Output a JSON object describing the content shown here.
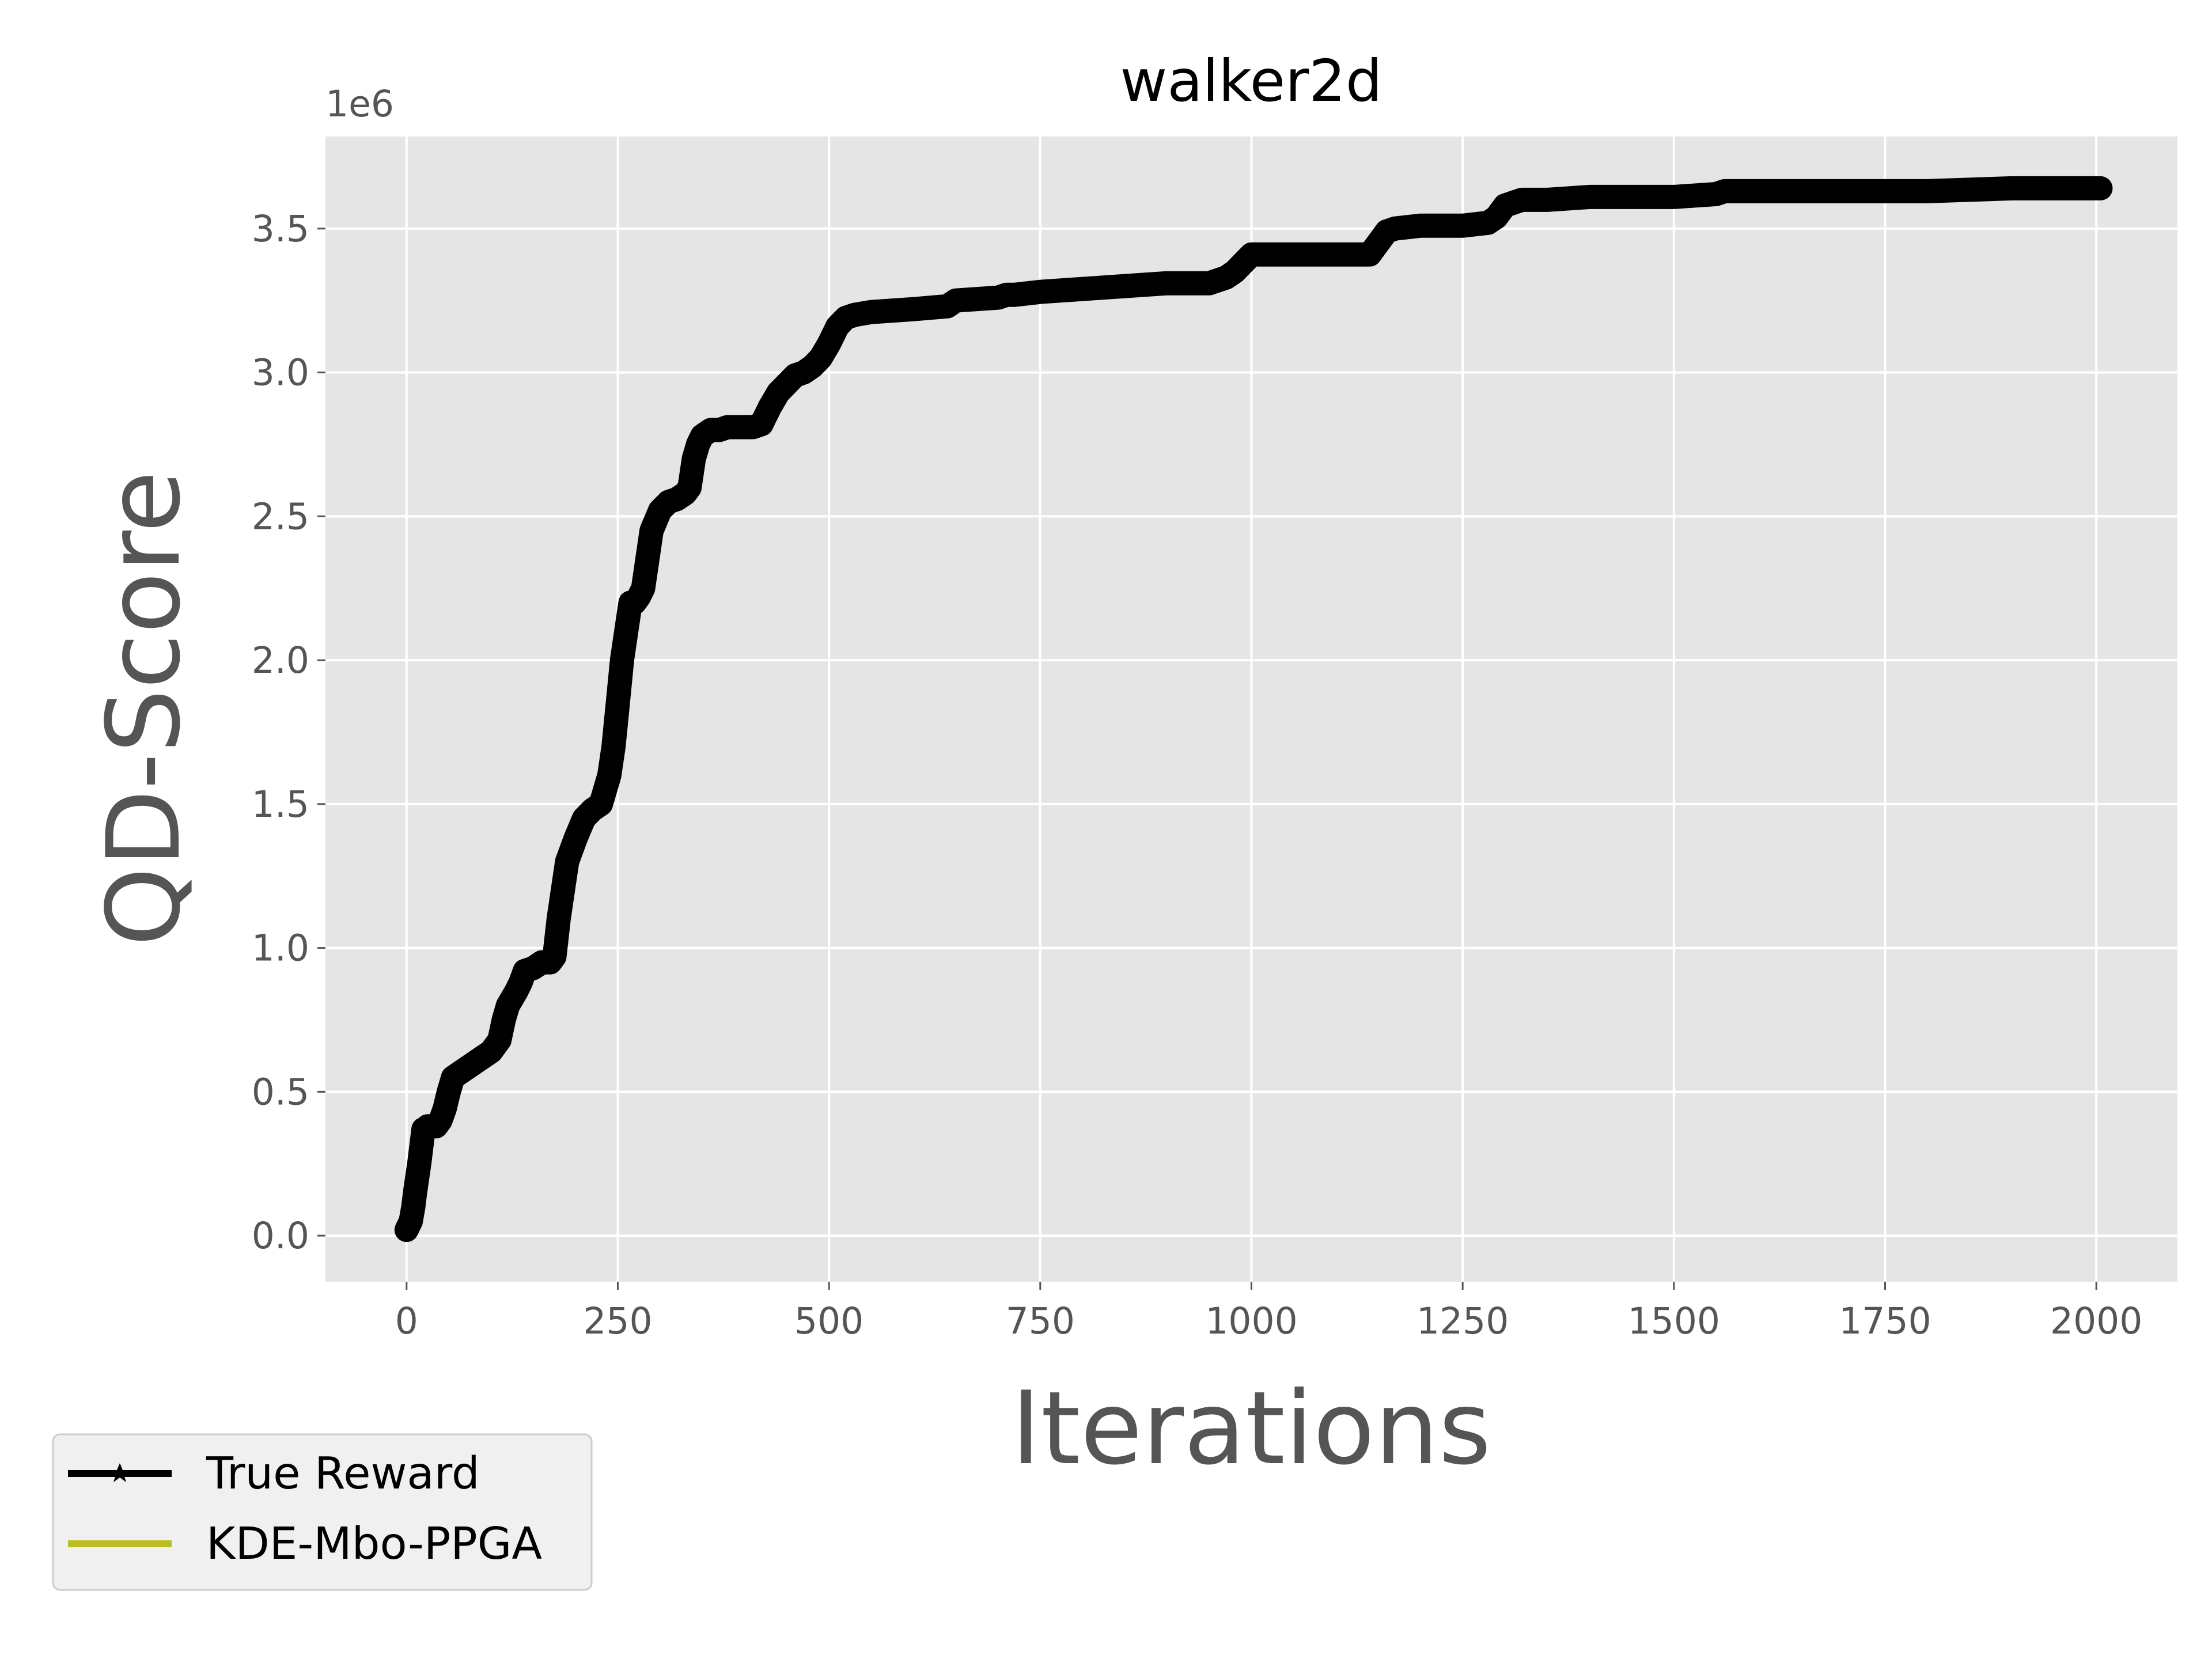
{
  "chart_data": {
    "type": "line",
    "title": "walker2d",
    "xlabel": "Iterations",
    "ylabel": "QD-Score",
    "y_offset_label": "1e6",
    "xlim": [
      -96,
      2096
    ],
    "ylim": [
      -0.16,
      3.82
    ],
    "x_ticks": [
      0,
      250,
      500,
      750,
      1000,
      1250,
      1500,
      1750,
      2000
    ],
    "x_tick_labels": [
      "0",
      "250",
      "500",
      "750",
      "1000",
      "1250",
      "1500",
      "1750",
      "2000"
    ],
    "y_ticks": [
      0.0,
      0.5,
      1.0,
      1.5,
      2.0,
      2.5,
      3.0,
      3.5
    ],
    "y_tick_labels": [
      "0.0",
      "0.5",
      "1.0",
      "1.5",
      "2.0",
      "2.5",
      "3.0",
      "3.5"
    ],
    "grid": true,
    "legend_position": "bottom-left outside",
    "series": [
      {
        "name": "True Reward",
        "color": "#000000",
        "marker": "star",
        "x": [
          0,
          5,
          8,
          10,
          15,
          20,
          22,
          25,
          35,
          40,
          45,
          50,
          55,
          60,
          70,
          80,
          90,
          95,
          100,
          110,
          115,
          120,
          130,
          135,
          140,
          150,
          155,
          160,
          170,
          175,
          180,
          185,
          190,
          200,
          210,
          220,
          230,
          240,
          245,
          250,
          255,
          260,
          265,
          270,
          275,
          280,
          285,
          290,
          300,
          310,
          320,
          330,
          335,
          340,
          345,
          350,
          360,
          370,
          380,
          390,
          400,
          410,
          420,
          430,
          440,
          450,
          460,
          470,
          480,
          490,
          500,
          505,
          510,
          520,
          530,
          550,
          600,
          640,
          650,
          700,
          710,
          720,
          750,
          800,
          850,
          900,
          950,
          970,
          980,
          990,
          1000,
          1050,
          1100,
          1140,
          1150,
          1160,
          1170,
          1200,
          1250,
          1280,
          1290,
          1300,
          1320,
          1350,
          1400,
          1500,
          1550,
          1560,
          1600,
          1700,
          1800,
          1900,
          2000,
          2005
        ],
        "y": [
          0.02,
          0.05,
          0.1,
          0.15,
          0.25,
          0.37,
          0.37,
          0.38,
          0.38,
          0.4,
          0.44,
          0.5,
          0.55,
          0.56,
          0.58,
          0.6,
          0.62,
          0.63,
          0.64,
          0.68,
          0.75,
          0.8,
          0.85,
          0.88,
          0.92,
          0.93,
          0.94,
          0.95,
          0.95,
          0.97,
          1.1,
          1.2,
          1.3,
          1.38,
          1.45,
          1.48,
          1.5,
          1.6,
          1.7,
          1.85,
          2.0,
          2.1,
          2.2,
          2.2,
          2.22,
          2.25,
          2.35,
          2.45,
          2.52,
          2.55,
          2.56,
          2.58,
          2.6,
          2.7,
          2.75,
          2.78,
          2.8,
          2.8,
          2.81,
          2.81,
          2.81,
          2.81,
          2.82,
          2.88,
          2.93,
          2.96,
          2.99,
          3.0,
          3.02,
          3.05,
          3.1,
          3.13,
          3.16,
          3.19,
          3.2,
          3.21,
          3.22,
          3.23,
          3.25,
          3.26,
          3.27,
          3.27,
          3.28,
          3.29,
          3.3,
          3.31,
          3.31,
          3.33,
          3.35,
          3.38,
          3.41,
          3.41,
          3.41,
          3.41,
          3.45,
          3.49,
          3.5,
          3.51,
          3.51,
          3.52,
          3.54,
          3.58,
          3.6,
          3.6,
          3.61,
          3.61,
          3.62,
          3.63,
          3.63,
          3.63,
          3.63,
          3.64,
          3.64,
          3.64
        ]
      },
      {
        "name": "KDE-Mbo-PPGA",
        "color": "#bcbd22",
        "x": [],
        "y": []
      }
    ]
  }
}
